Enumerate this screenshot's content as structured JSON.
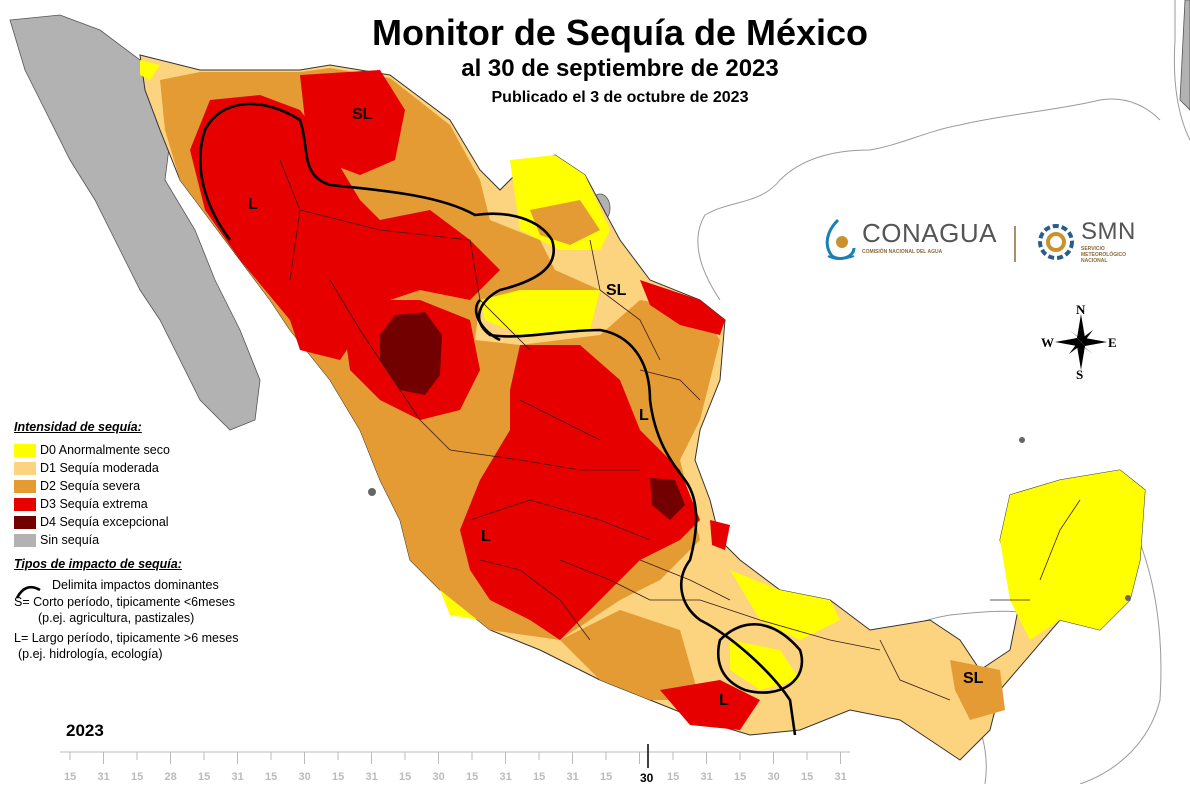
{
  "header": {
    "title": "Monitor de Sequía de México",
    "subtitle": "al 30 de septiembre de 2023",
    "published": "Publicado el 3 de octubre de 2023"
  },
  "logos": {
    "conagua_name": "CONAGUA",
    "conagua_sub": "COMISIÓN NACIONAL DEL AGUA",
    "smn_name": "SMN",
    "smn_sub": "SERVICIO METEOROLÓGICO NACIONAL"
  },
  "compass": {
    "n": "N",
    "s": "S",
    "e": "E",
    "w": "W"
  },
  "legend": {
    "intensity_title": "Intensidad de sequía:",
    "items": [
      {
        "code": "D0",
        "label": "D0 Anormalmente seco",
        "color": "#ffff00"
      },
      {
        "code": "D1",
        "label": "D1 Sequía moderada",
        "color": "#fcd37f"
      },
      {
        "code": "D2",
        "label": "D2 Sequía severa",
        "color": "#e49b33"
      },
      {
        "code": "D3",
        "label": "D3 Sequía extrema",
        "color": "#e60000"
      },
      {
        "code": "D4",
        "label": "D4 Sequía excepcional",
        "color": "#730000"
      },
      {
        "code": "none",
        "label": "Sin sequía",
        "color": "#b2b2b2"
      }
    ],
    "impact_title": "Tipos de impacto de sequía:",
    "impact_line": "Delimita impactos dominantes",
    "short_1": "S= Corto período, tipicamente <6meses",
    "short_2": "(p.ej. agricultura, pastizales)",
    "long_1": "L= Largo período, tipicamente >6 meses",
    "long_2": "(p.ej. hidrología, ecología)"
  },
  "map_labels": {
    "sl_north": "SL",
    "l_northwest": "L",
    "sl_northeast": "SL",
    "l_east": "L",
    "l_west": "L",
    "l_south": "L",
    "sl_southeast": "SL"
  },
  "timeline": {
    "year": "2023",
    "current": "30",
    "ticks": [
      "15",
      "31",
      "15",
      "28",
      "15",
      "31",
      "15",
      "30",
      "15",
      "31",
      "15",
      "30",
      "15",
      "31",
      "15",
      "31",
      "15",
      "30",
      "15",
      "31",
      "15",
      "30",
      "15",
      "31"
    ]
  }
}
